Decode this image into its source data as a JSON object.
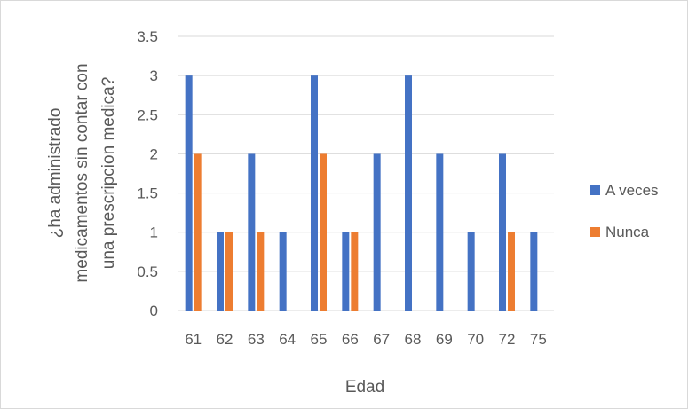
{
  "chart_data": {
    "type": "bar",
    "categories": [
      "61",
      "62",
      "63",
      "64",
      "65",
      "66",
      "67",
      "68",
      "69",
      "70",
      "72",
      "75"
    ],
    "series": [
      {
        "name": "A veces",
        "values": [
          3,
          1,
          2,
          1,
          3,
          1,
          2,
          3,
          2,
          1,
          2,
          1
        ],
        "color": "#4472C4"
      },
      {
        "name": "Nunca",
        "values": [
          2,
          1,
          1,
          0,
          2,
          1,
          0,
          0,
          0,
          0,
          1,
          0
        ],
        "color": "#ED7D31"
      }
    ],
    "xlabel": "Edad",
    "ylabel_lines": [
      "¿ha administrado",
      "medicamentos sin contar con",
      "una prescripcion medica?"
    ],
    "ylim": [
      0,
      3.5
    ],
    "yticks": [
      "0",
      "0.5",
      "1",
      "1.5",
      "2",
      "2.5",
      "3",
      "3.5"
    ],
    "grid": true,
    "legend_position": "right"
  }
}
